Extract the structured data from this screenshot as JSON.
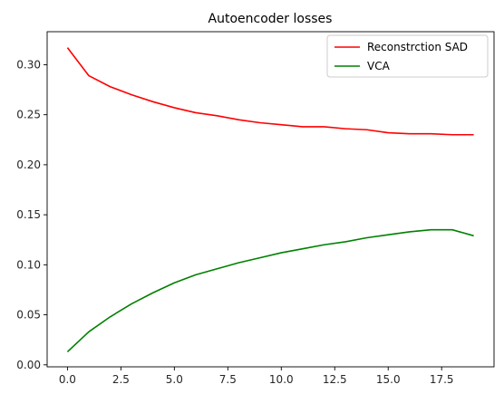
{
  "chart_data": {
    "type": "line",
    "title": "Autoencoder losses",
    "xlabel": "",
    "ylabel": "",
    "xlim": [
      -0.95,
      19.95
    ],
    "ylim": [
      -0.002,
      0.333
    ],
    "xticks": [
      0.0,
      2.5,
      5.0,
      7.5,
      10.0,
      12.5,
      15.0,
      17.5
    ],
    "xtick_labels": [
      "0.0",
      "2.5",
      "5.0",
      "7.5",
      "10.0",
      "12.5",
      "15.0",
      "17.5"
    ],
    "yticks": [
      0.0,
      0.05,
      0.1,
      0.15,
      0.2,
      0.25,
      0.3
    ],
    "ytick_labels": [
      "0.00",
      "0.05",
      "0.10",
      "0.15",
      "0.20",
      "0.25",
      "0.30"
    ],
    "grid": false,
    "legend_position": "top-right",
    "x": [
      0,
      1,
      2,
      3,
      4,
      5,
      6,
      7,
      8,
      9,
      10,
      11,
      12,
      13,
      14,
      15,
      16,
      17,
      18,
      19
    ],
    "series": [
      {
        "name": "Reconstrction SAD",
        "color": "#ff0000",
        "values": [
          0.317,
          0.289,
          0.278,
          0.27,
          0.263,
          0.257,
          0.252,
          0.249,
          0.245,
          0.242,
          0.24,
          0.238,
          0.238,
          0.236,
          0.235,
          0.232,
          0.231,
          0.231,
          0.23,
          0.23
        ]
      },
      {
        "name": "VCA",
        "color": "#008000",
        "values": [
          0.013,
          0.033,
          0.048,
          0.061,
          0.072,
          0.082,
          0.09,
          0.096,
          0.102,
          0.107,
          0.112,
          0.116,
          0.12,
          0.123,
          0.127,
          0.13,
          0.133,
          0.135,
          0.135,
          0.129
        ]
      }
    ]
  }
}
